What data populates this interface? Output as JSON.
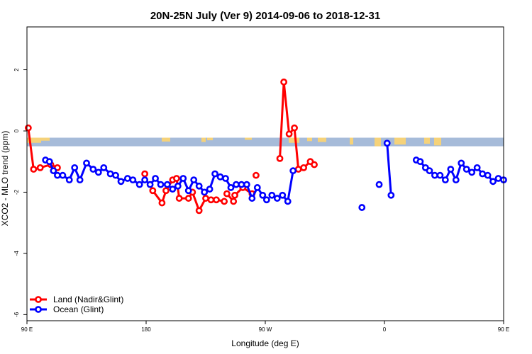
{
  "chart_data": {
    "type": "line",
    "title": "20N-25N July (Ver 9)   2014-09-06 to 2018-12-31",
    "xlabel": "Longitude (deg E)",
    "ylabel": "XCO2 - MLO trend (ppm)",
    "xlim": [
      90,
      450
    ],
    "ylim": [
      -6.2,
      3.4
    ],
    "x_ticks": [
      {
        "value": 90,
        "label": "90 E"
      },
      {
        "value": 180,
        "label": "180"
      },
      {
        "value": 270,
        "label": "90 W"
      },
      {
        "value": 360,
        "label": "0"
      },
      {
        "value": 450,
        "label": "90 E"
      },
      {
        "value": 540,
        "label": "180"
      }
    ],
    "y_ticks": [
      {
        "value": 2,
        "label": "2"
      },
      {
        "value": 0,
        "label": "0"
      },
      {
        "value": -2,
        "label": "-2"
      },
      {
        "value": -4,
        "label": "-4"
      },
      {
        "value": -6,
        "label": "-6"
      }
    ],
    "land_ocean_band": {
      "y_top": -0.22,
      "y_bottom": -0.5,
      "ocean_color": "#a6bbd9",
      "land_color": "#f5d27a"
    },
    "legend": {
      "position": "bottom-left",
      "entries": [
        {
          "label": "Land (Nadir&Glint)",
          "color": "#ff0000"
        },
        {
          "label": "Ocean (Glint)",
          "color": "#0000ff"
        }
      ]
    },
    "series": [
      {
        "name": "Land (Nadir&Glint)",
        "color": "#ff0000",
        "segments": [
          {
            "x": [
              91,
              95,
              100,
              108,
              113
            ],
            "y": [
              0.1,
              -1.25,
              -1.2,
              -1.1,
              -1.2
            ]
          },
          {
            "x": [
              179
            ],
            "y": [
              -1.4
            ]
          },
          {
            "x": [
              185,
              192,
              195,
              200
            ],
            "y": [
              -1.95,
              -2.35,
              -1.95,
              -1.6
            ]
          },
          {
            "x": [
              203,
              205,
              212,
              215,
              220,
              225,
              229,
              233,
              239
            ],
            "y": [
              -1.55,
              -2.2,
              -2.2,
              -2.0,
              -2.6,
              -2.2,
              -2.25,
              -2.25,
              -2.3
            ]
          },
          {
            "x": [
              241,
              246,
              247,
              253,
              260
            ],
            "y": [
              -2.05,
              -2.3,
              -2.1,
              -1.85,
              -2.05
            ]
          },
          {
            "x": [
              263
            ],
            "y": [
              -1.45
            ]
          },
          {
            "x": [
              281,
              284,
              288,
              292,
              295,
              299,
              304,
              307
            ],
            "y": [
              -0.9,
              1.6,
              -0.1,
              0.1,
              -1.25,
              -1.2,
              -1.0,
              -1.1
            ]
          }
        ]
      },
      {
        "name": "Ocean (Glint)",
        "color": "#0000ff",
        "segments": [
          {
            "x": [
              104,
              107,
              110,
              113,
              117,
              122,
              126,
              130,
              135,
              140,
              144,
              148,
              153,
              157,
              161,
              166,
              170,
              175,
              179,
              183,
              187,
              191,
              196,
              200,
              204,
              208,
              212,
              216,
              220,
              224,
              228,
              232,
              236,
              240,
              244,
              248,
              252,
              256,
              260,
              264,
              268,
              271
            ],
            "y": [
              -0.95,
              -1.0,
              -1.3,
              -1.45,
              -1.45,
              -1.6,
              -1.2,
              -1.6,
              -1.05,
              -1.25,
              -1.35,
              -1.2,
              -1.4,
              -1.45,
              -1.65,
              -1.55,
              -1.6,
              -1.75,
              -1.6,
              -1.75,
              -1.55,
              -1.75,
              -1.75,
              -1.9,
              -1.8,
              -1.55,
              -1.95,
              -1.6,
              -1.8,
              -2.0,
              -1.9,
              -1.4,
              -1.5,
              -1.55,
              -1.85,
              -1.75,
              -1.75,
              -1.75,
              -2.2,
              -1.85,
              -2.1,
              -2.25
            ]
          },
          {
            "x": [
              275,
              279,
              283,
              287,
              291
            ],
            "y": [
              -2.1,
              -2.2,
              -2.1,
              -2.3,
              -1.3
            ]
          },
          {
            "x": [
              343
            ],
            "y": [
              -2.5
            ]
          },
          {
            "x": [
              356
            ],
            "y": [
              -1.75
            ]
          },
          {
            "x": [
              362,
              365
            ],
            "y": [
              -0.4,
              -2.1
            ]
          },
          {
            "x": [
              384,
              387,
              391,
              394,
              398,
              402,
              406,
              410,
              414,
              418,
              422,
              426,
              430,
              434,
              438,
              442,
              446,
              450
            ],
            "y": [
              -0.95,
              -1.0,
              -1.2,
              -1.3,
              -1.45,
              -1.45,
              -1.6,
              -1.25,
              -1.6,
              -1.05,
              -1.25,
              -1.35,
              -1.2,
              -1.4,
              -1.45,
              -1.65,
              -1.55,
              -1.6
            ]
          }
        ]
      }
    ]
  }
}
